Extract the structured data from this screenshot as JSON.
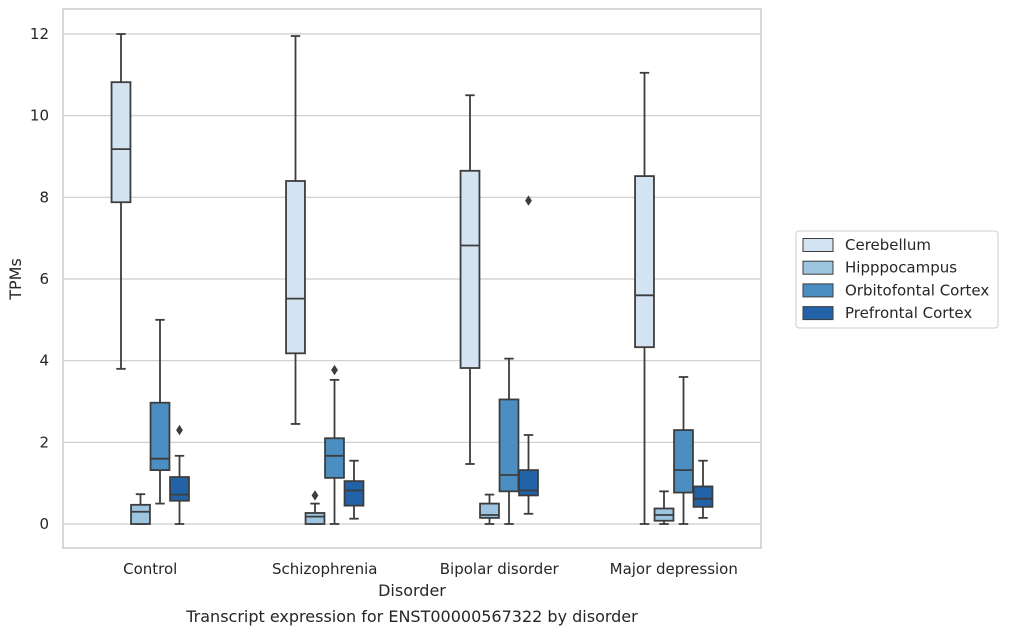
{
  "chart_data": {
    "type": "box",
    "title": "",
    "caption": "Transcript expression for ENST00000567322 by disorder",
    "xlabel": "Disorder",
    "ylabel": "TPMs",
    "ylim": [
      -0.6,
      12.6
    ],
    "yticks": [
      0,
      2,
      4,
      6,
      8,
      10,
      12
    ],
    "grid": "horizontal",
    "legend_position": "right",
    "categories": [
      "Control",
      "Schizophrenia",
      "Bipolar disorder",
      "Major depression"
    ],
    "series": [
      {
        "name": "Cerebellum",
        "color": "#d4e3f2",
        "boxes": [
          {
            "whisker_low": 3.8,
            "q1": 7.88,
            "median": 9.18,
            "q3": 10.82,
            "whisker_high": 12.0,
            "outliers": []
          },
          {
            "whisker_low": 2.45,
            "q1": 4.18,
            "median": 5.52,
            "q3": 8.4,
            "whisker_high": 11.95,
            "outliers": []
          },
          {
            "whisker_low": 1.47,
            "q1": 3.82,
            "median": 6.82,
            "q3": 8.65,
            "whisker_high": 10.5,
            "outliers": []
          },
          {
            "whisker_low": 0.0,
            "q1": 4.33,
            "median": 5.6,
            "q3": 8.52,
            "whisker_high": 11.05,
            "outliers": []
          }
        ]
      },
      {
        "name": "Hipppocampus",
        "color": "#9dc5e0",
        "boxes": [
          {
            "whisker_low": 0.0,
            "q1": 0.0,
            "median": 0.3,
            "q3": 0.47,
            "whisker_high": 0.73,
            "outliers": []
          },
          {
            "whisker_low": 0.0,
            "q1": 0.0,
            "median": 0.18,
            "q3": 0.27,
            "whisker_high": 0.5,
            "outliers": [
              0.7
            ]
          },
          {
            "whisker_low": 0.0,
            "q1": 0.15,
            "median": 0.22,
            "q3": 0.5,
            "whisker_high": 0.72,
            "outliers": []
          },
          {
            "whisker_low": 0.0,
            "q1": 0.08,
            "median": 0.22,
            "q3": 0.38,
            "whisker_high": 0.8,
            "outliers": []
          }
        ]
      },
      {
        "name": "Orbitofontal Cortex",
        "color": "#4b8fc2",
        "boxes": [
          {
            "whisker_low": 0.5,
            "q1": 1.32,
            "median": 1.6,
            "q3": 2.97,
            "whisker_high": 5.0,
            "outliers": []
          },
          {
            "whisker_low": 0.0,
            "q1": 1.13,
            "median": 1.67,
            "q3": 2.1,
            "whisker_high": 3.53,
            "outliers": [
              3.77
            ]
          },
          {
            "whisker_low": 0.0,
            "q1": 0.8,
            "median": 1.2,
            "q3": 3.05,
            "whisker_high": 4.05,
            "outliers": []
          },
          {
            "whisker_low": 0.0,
            "q1": 0.77,
            "median": 1.32,
            "q3": 2.3,
            "whisker_high": 3.6,
            "outliers": []
          }
        ]
      },
      {
        "name": "Prefrontal Cortex",
        "color": "#2262a6",
        "boxes": [
          {
            "whisker_low": 0.0,
            "q1": 0.57,
            "median": 0.72,
            "q3": 1.15,
            "whisker_high": 1.67,
            "outliers": [
              2.3
            ]
          },
          {
            "whisker_low": 0.13,
            "q1": 0.45,
            "median": 0.82,
            "q3": 1.05,
            "whisker_high": 1.55,
            "outliers": []
          },
          {
            "whisker_low": 0.25,
            "q1": 0.7,
            "median": 0.82,
            "q3": 1.32,
            "whisker_high": 2.18,
            "outliers": [
              7.92
            ]
          },
          {
            "whisker_low": 0.15,
            "q1": 0.42,
            "median": 0.62,
            "q3": 0.92,
            "whisker_high": 1.55,
            "outliers": []
          }
        ]
      }
    ]
  }
}
